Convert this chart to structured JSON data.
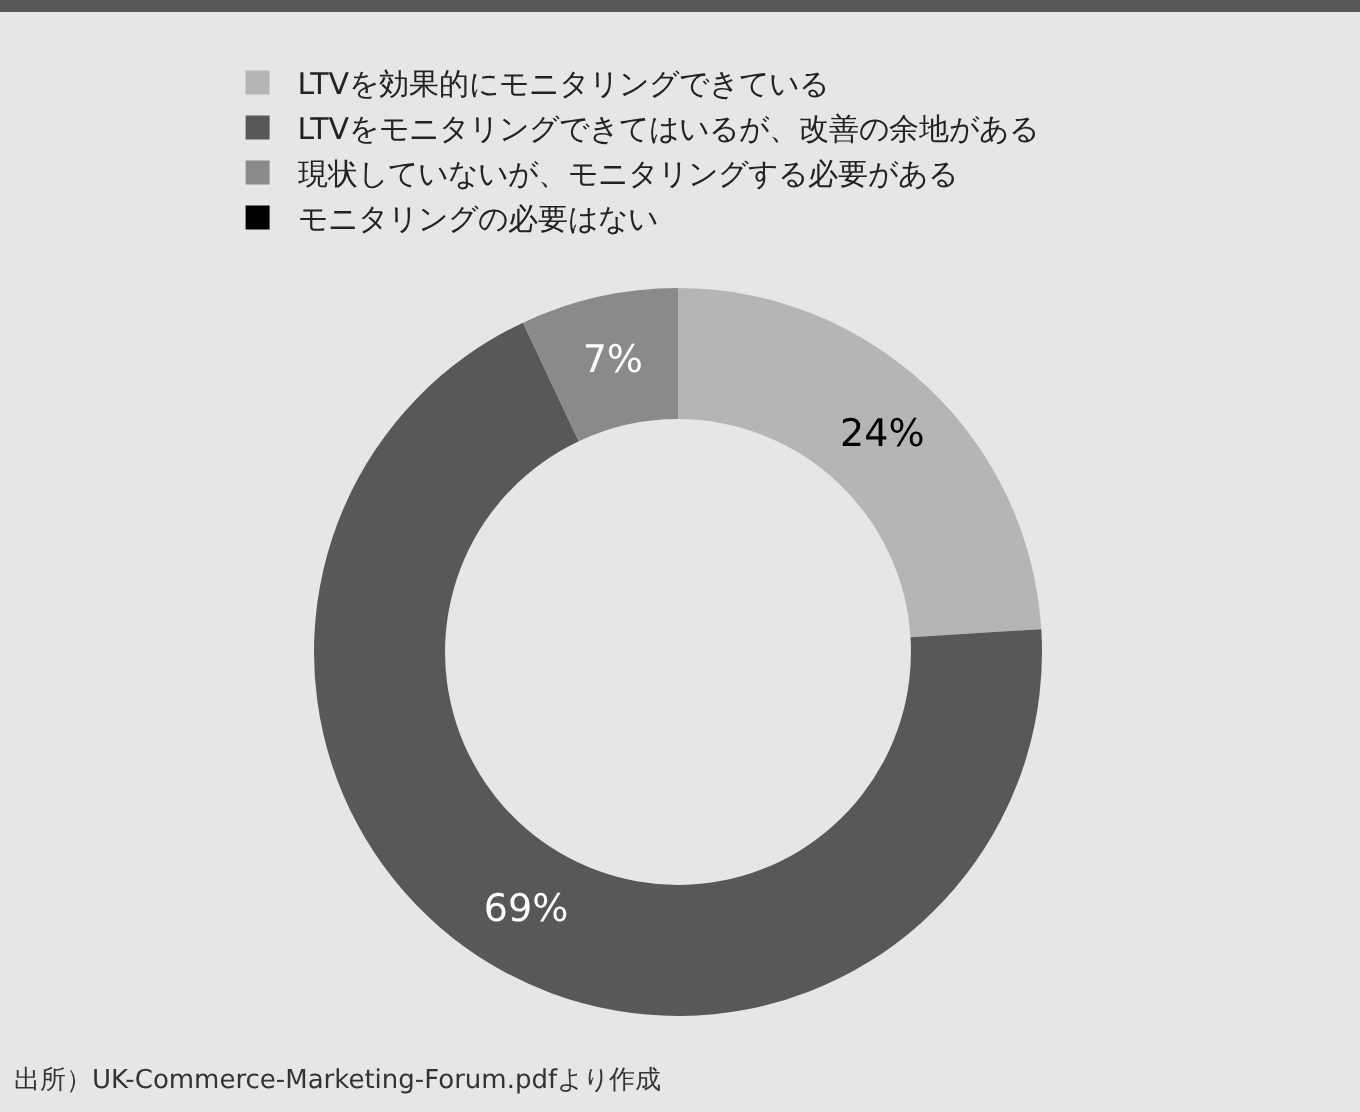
{
  "chart_data": {
    "type": "donut",
    "categories": [
      "LTVを効果的にモニタリングできている",
      "LTVをモニタリングできてはいるが、改善の余地がある",
      "現状していないが、モニタリングする必要がある",
      "モニタリングの必要はない"
    ],
    "values": [
      24,
      69,
      7,
      0
    ],
    "colors": [
      "#b4b5b4",
      "#595757",
      "#8a8a8a",
      "#000000"
    ],
    "value_labels": [
      "24%",
      "69%",
      "7%",
      null
    ],
    "legend": "top",
    "annotations": [
      "出所）UK-Commerce-Marketing-Forum.pdfより作成"
    ]
  }
}
